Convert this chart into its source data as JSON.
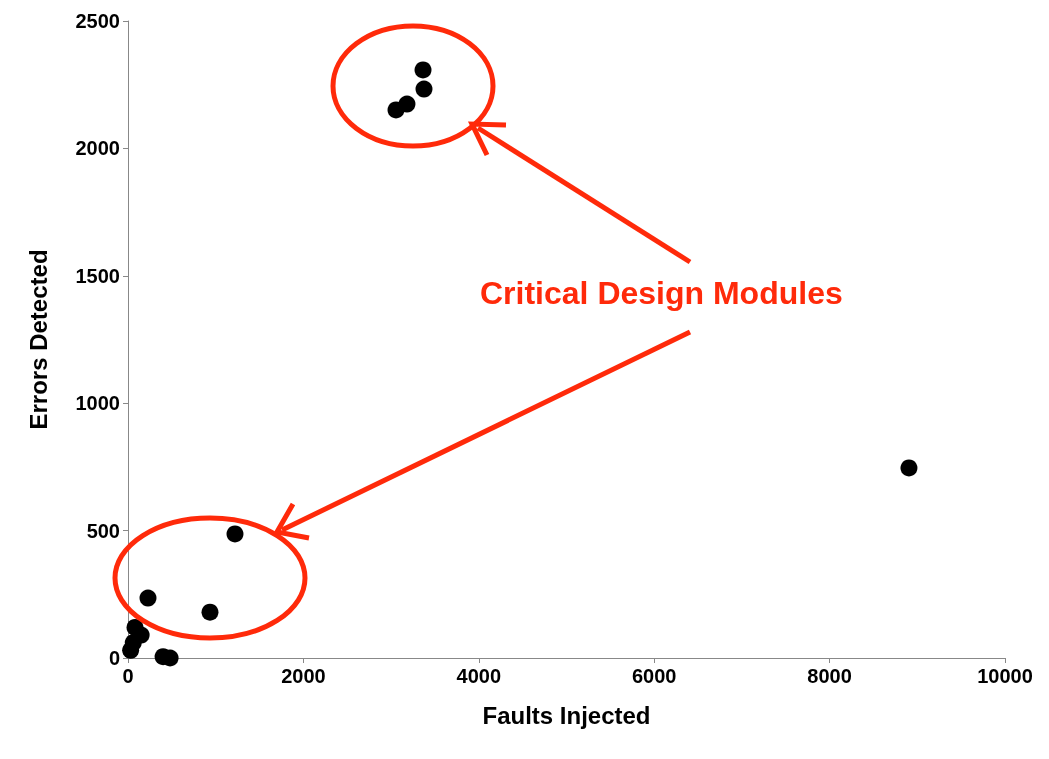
{
  "chart_data": {
    "type": "scatter",
    "xlabel": "Faults Injected",
    "ylabel": "Errors Detected",
    "annotations": [
      "Critical Design Modules"
    ],
    "x": [
      30,
      60,
      80,
      150,
      400,
      480,
      228,
      935,
      1220,
      3056,
      3181,
      3375,
      3364,
      8905
    ],
    "values": [
      30,
      60,
      120,
      90,
      5,
      0,
      235,
      180,
      487,
      2151,
      2174,
      2233,
      2308,
      746
    ],
    "color": "#000000",
    "marker": "circle",
    "grid": false,
    "xlim": [
      0,
      10000
    ],
    "xticks": [
      0,
      2000,
      4000,
      6000,
      8000,
      10000
    ],
    "ylim": [
      0,
      2500
    ],
    "yticks": [
      0,
      500,
      1000,
      1500,
      2000,
      2500
    ]
  }
}
